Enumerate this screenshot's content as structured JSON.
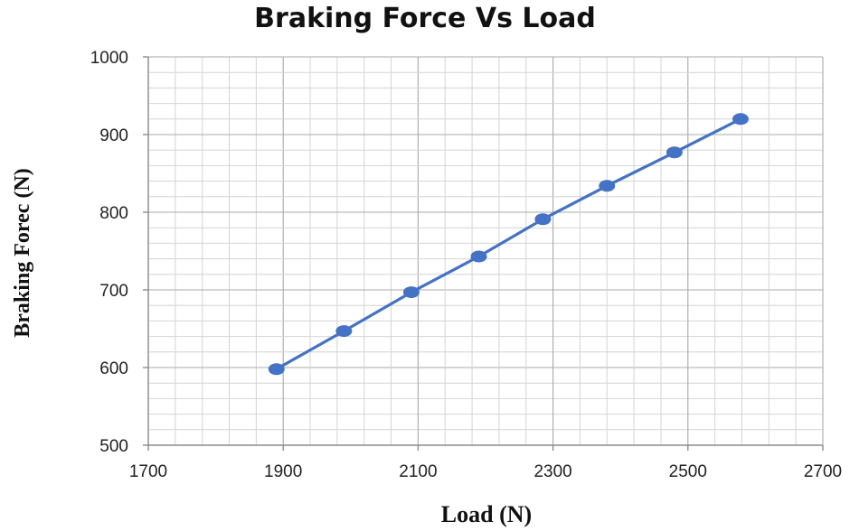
{
  "chart_data": {
    "type": "line",
    "title": "Braking Force Vs Load",
    "xlabel": "Load (N)",
    "ylabel": "Braking Forec (N)",
    "xlim": [
      1700,
      2700
    ],
    "ylim": [
      500,
      1000
    ],
    "x_ticks": [
      "1700",
      "1900",
      "2100",
      "2300",
      "2500",
      "2700"
    ],
    "y_ticks": [
      "500",
      "600",
      "700",
      "800",
      "900",
      "1000"
    ],
    "grid": true,
    "legend": "none",
    "series": [
      {
        "color": "#4472c4",
        "x": [
          1890,
          1990,
          2090,
          2190,
          2285,
          2380,
          2480,
          2578
        ],
        "y": [
          598,
          647,
          697,
          743,
          791,
          834,
          877,
          920
        ]
      }
    ]
  }
}
